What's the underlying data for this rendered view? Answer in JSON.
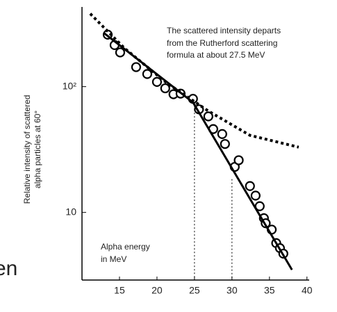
{
  "chart_data": {
    "type": "scatter",
    "annotation": [
      "The scattered intensity departs",
      "from the Rutherford scattering",
      "formula at about 27.5 MeV"
    ],
    "ylabel": [
      "Relative intensity of scattered",
      "alpha particles at 60°"
    ],
    "note": [
      "Alpha energy",
      "in MeV"
    ],
    "fragment": "en",
    "xlim": [
      10,
      40.3
    ],
    "xticks": [
      15,
      20,
      25,
      30,
      35,
      40
    ],
    "ylim": [
      2.9,
      430
    ],
    "yticks": [
      10,
      {
        "value": 100,
        "label": "10²"
      }
    ],
    "log_y": true,
    "series": [
      {
        "style": "markers",
        "color": "#000000",
        "x": [
          13.43,
          14.35,
          15.09,
          17.22,
          18.7,
          20.0,
          21.1,
          22.2,
          23.15,
          24.8,
          25.6,
          26.85,
          27.5,
          28.7,
          29.07,
          30.37,
          30.9,
          32.4,
          33.15,
          33.7,
          34.26,
          34.5,
          35.3,
          35.9,
          36.4,
          36.85
        ],
        "values": [
          259,
          214,
          187,
          143,
          126,
          109,
          97,
          87,
          88,
          80,
          66,
          58,
          46,
          42,
          35,
          23,
          26,
          16.2,
          13.6,
          11.2,
          9.0,
          8.2,
          7.3,
          5.7,
          5.2,
          4.7
        ]
      },
      {
        "style": "solid",
        "color": "#000000",
        "x": [
          12.96,
          24.8,
          38.0
        ],
        "values": [
          266,
          75,
          3.5
        ]
      },
      {
        "style": "dotted",
        "color": "#000000",
        "x": [
          11.1,
          15.7,
          21.3,
          26.85,
          32.4,
          38.9
        ],
        "values": [
          380,
          201,
          107,
          64,
          41,
          33
        ]
      }
    ],
    "vlines": [
      {
        "x": 25,
        "y": 75
      },
      {
        "x": 30,
        "y": 18.4
      }
    ]
  }
}
